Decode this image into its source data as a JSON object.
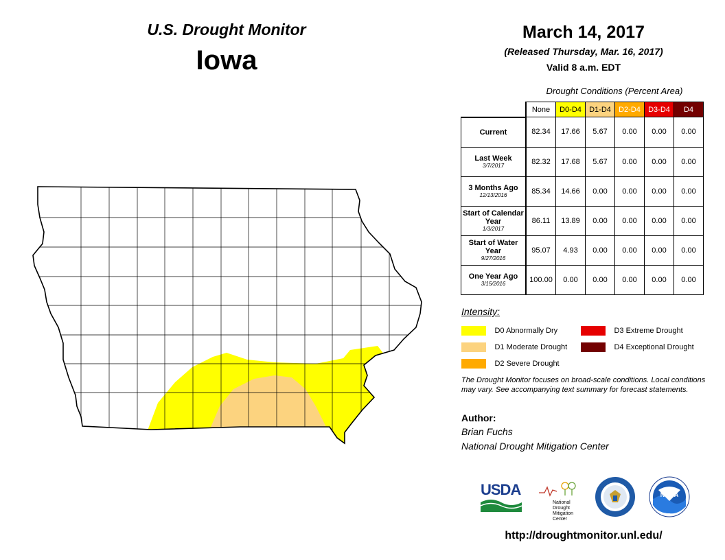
{
  "header": {
    "title": "U.S. Drought Monitor",
    "state": "Iowa",
    "date": "March 14, 2017",
    "released": "(Released Thursday, Mar. 16, 2017)",
    "valid": "Valid 8 a.m. EDT"
  },
  "table": {
    "title": "Drought Conditions (Percent Area)",
    "columns": [
      {
        "label": "None",
        "color": "#ffffff",
        "text_color": "#000000"
      },
      {
        "label": "D0-D4",
        "color": "#ffff00",
        "text_color": "#000000"
      },
      {
        "label": "D1-D4",
        "color": "#fcd37f",
        "text_color": "#000000"
      },
      {
        "label": "D2-D4",
        "color": "#ffaa00",
        "text_color": "#ffffff"
      },
      {
        "label": "D3-D4",
        "color": "#e60000",
        "text_color": "#ffffff"
      },
      {
        "label": "D4",
        "color": "#730000",
        "text_color": "#ffffff"
      }
    ],
    "rows": [
      {
        "label": "Current",
        "sub": "",
        "values": [
          "82.34",
          "17.66",
          "5.67",
          "0.00",
          "0.00",
          "0.00"
        ]
      },
      {
        "label": "Last Week",
        "sub": "3/7/2017",
        "values": [
          "82.32",
          "17.68",
          "5.67",
          "0.00",
          "0.00",
          "0.00"
        ]
      },
      {
        "label": "3 Months Ago",
        "sub": "12/13/2016",
        "values": [
          "85.34",
          "14.66",
          "0.00",
          "0.00",
          "0.00",
          "0.00"
        ]
      },
      {
        "label": "Start of Calendar Year",
        "sub": "1/3/2017",
        "values": [
          "86.11",
          "13.89",
          "0.00",
          "0.00",
          "0.00",
          "0.00"
        ]
      },
      {
        "label": "Start of Water Year",
        "sub": "9/27/2016",
        "values": [
          "95.07",
          "4.93",
          "0.00",
          "0.00",
          "0.00",
          "0.00"
        ]
      },
      {
        "label": "One Year Ago",
        "sub": "3/15/2016",
        "values": [
          "100.00",
          "0.00",
          "0.00",
          "0.00",
          "0.00",
          "0.00"
        ]
      }
    ]
  },
  "legend": {
    "title": "Intensity:",
    "items": [
      {
        "label": "D0 Abnormally Dry",
        "color": "#ffff00"
      },
      {
        "label": "D1 Moderate Drought",
        "color": "#fcd37f"
      },
      {
        "label": "D2 Severe Drought",
        "color": "#ffaa00"
      },
      {
        "label": "D3 Extreme Drought",
        "color": "#e60000"
      },
      {
        "label": "D4 Exceptional Drought",
        "color": "#730000"
      }
    ]
  },
  "note": "The Drought Monitor focuses on broad-scale conditions. Local conditions may vary. See accompanying text summary for forecast statements.",
  "author": {
    "heading": "Author:",
    "name": "Brian Fuchs",
    "org": "National Drought Mitigation Center"
  },
  "logos": {
    "usda": "USDA",
    "ndmc": [
      "National",
      "Drought",
      "Mitigation",
      "Center"
    ],
    "noaa": "NOAA"
  },
  "url": "http://droughtmonitor.unl.edu/",
  "map_colors": {
    "d0": "#ffff00",
    "d1": "#fcd37f",
    "border": "#000000",
    "county_line": "#000000"
  }
}
